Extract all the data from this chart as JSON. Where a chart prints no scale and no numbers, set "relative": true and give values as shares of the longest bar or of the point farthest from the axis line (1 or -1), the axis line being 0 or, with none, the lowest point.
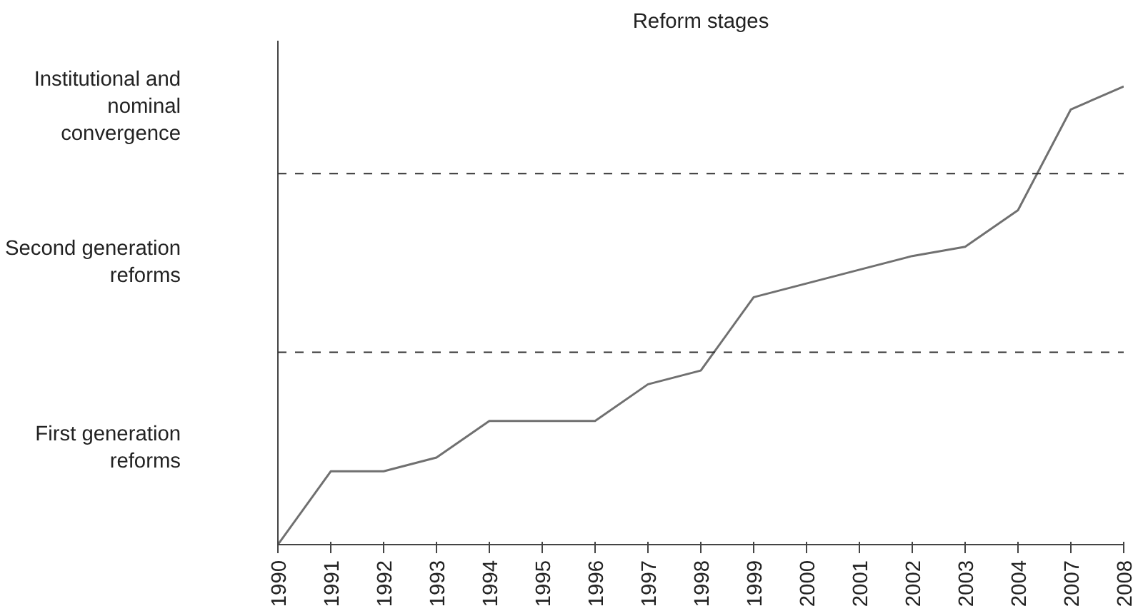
{
  "chart_data": {
    "type": "line",
    "title": "Reform stages",
    "relative": true,
    "categories": [
      "1990",
      "1991",
      "1992",
      "1993",
      "1994",
      "1995",
      "1996",
      "1997",
      "1998",
      "1999",
      "2000",
      "2001",
      "2002",
      "2003",
      "2004",
      "2007",
      "2008"
    ],
    "series": [
      {
        "color": "#707070",
        "values": [
          0,
          0.16,
          0.16,
          0.19,
          0.27,
          0.27,
          0.27,
          0.35,
          0.38,
          0.54,
          0.57,
          0.6,
          0.63,
          0.65,
          0.73,
          0.95,
          1
        ]
      }
    ],
    "ref_lines": [
      {
        "axis": "y",
        "value": 0.42,
        "color": "#333333",
        "line_style": "dashed"
      },
      {
        "axis": "y",
        "value": 0.81,
        "color": "#333333",
        "line_style": "dashed"
      }
    ],
    "annotations": [
      "First generation reforms",
      "Second generation reforms",
      "Institutional and nominal convergence"
    ],
    "grid": false,
    "marker": "none",
    "line_style": "solid"
  }
}
